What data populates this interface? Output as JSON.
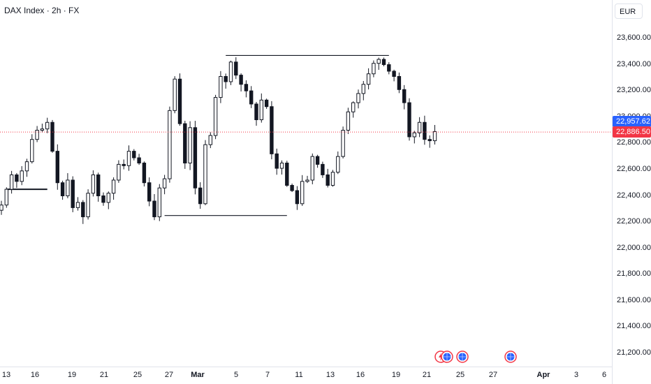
{
  "header": {
    "title": "DAX Index · 2h · FX"
  },
  "price_axis": {
    "currency": "EUR",
    "blue_tag": {
      "value": "22,957.62",
      "color": "#2962ff"
    },
    "red_tag": {
      "value": "22,886.50",
      "color": "#f23645"
    }
  },
  "colors": {
    "candle": "#131722",
    "current_line": "#f23645",
    "bg": "#ffffff",
    "grid": "#e0e3eb"
  },
  "chart_data": {
    "type": "candlestick",
    "symbol": "DAX Index",
    "interval": "2h",
    "y_ticks": [
      "23,600.00",
      "23,400.00",
      "23,200.00",
      "23,000.00",
      "22,800.00",
      "22,600.00",
      "22,400.00",
      "22,200.00",
      "22,000.00",
      "21,800.00",
      "21,600.00",
      "21,400.00",
      "21,200.00"
    ],
    "y_tick_values": [
      23600,
      23400,
      23200,
      23000,
      22800,
      22600,
      22400,
      22200,
      22000,
      21800,
      21600,
      21400,
      21200
    ],
    "ylim": [
      21130,
      23790
    ],
    "x_ticks": [
      "13",
      "16",
      "19",
      "21",
      "25",
      "27",
      "Mar",
      "5",
      "7",
      "11",
      "13",
      "16",
      "19",
      "21",
      "25",
      "27",
      "Apr",
      "3",
      "6"
    ],
    "current_price": 22886.5,
    "blue_price": 22957.62,
    "closes_approx": [
      22330,
      22450,
      22560,
      22510,
      22590,
      22660,
      22830,
      22900,
      22910,
      22960,
      22740,
      22500,
      22400,
      22520,
      22310,
      22350,
      22240,
      22420,
      22560,
      22400,
      22350,
      22420,
      22520,
      22640,
      22630,
      22740,
      22690,
      22650,
      22500,
      22360,
      22240,
      22460,
      22530,
      23050,
      23290,
      22950,
      22650,
      22920,
      22460,
      22340,
      22790,
      22860,
      23150,
      23310,
      23270,
      23420,
      23320,
      23250,
      23200,
      23100,
      22980,
      23130,
      23080,
      22720,
      22610,
      22650,
      22480,
      22440,
      22340,
      22510,
      22520,
      22700,
      22640,
      22560,
      22480,
      22580,
      22700,
      22900,
      23040,
      23110,
      23180,
      23250,
      23330,
      23410,
      23440,
      23400,
      23350,
      23310,
      23210,
      23110,
      22850,
      22880,
      22960,
      22830,
      22820,
      22890
    ],
    "horizontal_levels": [
      {
        "price": 22450,
        "from_index": 1,
        "to_index": 9
      },
      {
        "price": 23470,
        "from_index": 44,
        "to_index": 76
      },
      {
        "price": 22250,
        "from_index": 32,
        "to_index": 56
      }
    ],
    "event_markers": 4
  }
}
